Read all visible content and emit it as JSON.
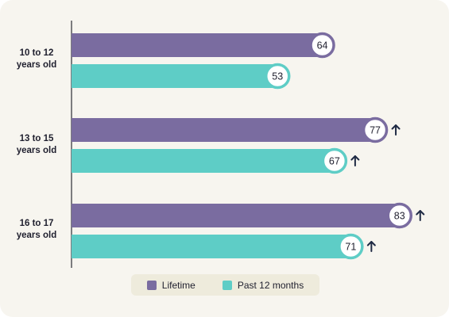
{
  "chart_data": {
    "type": "bar",
    "orientation": "horizontal",
    "categories": [
      "10 to 12\nyears old",
      "13 to 15\nyears old",
      "16 to 17\nyears old"
    ],
    "series": [
      {
        "name": "Lifetime",
        "color": "#7a6ca0",
        "values": [
          64,
          77,
          83
        ],
        "increase_marker": [
          false,
          true,
          true
        ]
      },
      {
        "name": "Past 12 months",
        "color": "#5ecdc6",
        "values": [
          53,
          67,
          71
        ],
        "increase_marker": [
          false,
          true,
          true
        ]
      }
    ],
    "xlim": [
      0,
      100
    ],
    "grid": false,
    "legend_position": "bottom",
    "increase_icon": "up-arrow-icon"
  }
}
